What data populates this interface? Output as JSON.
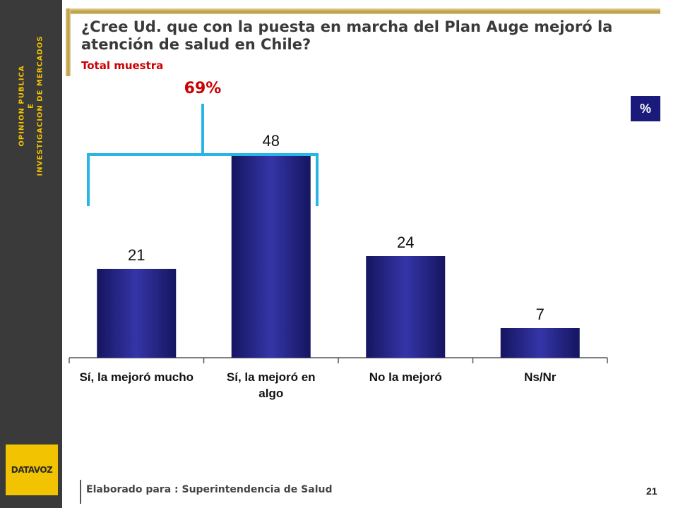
{
  "sidebar": {
    "lines": [
      "OPINION PUBLICA",
      "E",
      "INVESTIGACION DE MERCADOS"
    ],
    "logo_text": "DATAVOZ"
  },
  "header": {
    "title": "¿Cree Ud. que con la puesta en marcha del Plan Auge mejoró la atención de salud en Chile?",
    "subtitle": "Total muestra"
  },
  "unit_badge": "%",
  "footer": {
    "text": "Elaborado para : Superintendencia de Salud",
    "page_number": "21"
  },
  "colors": {
    "sidebar": "#3a3a3a",
    "accent_yellow": "#f2c300",
    "bar": "#2a2a90",
    "bracket": "#29b6e6",
    "subtitle": "#cc0000"
  },
  "chart_data": {
    "type": "bar",
    "categories": [
      [
        "Sí, la mejoró mucho"
      ],
      [
        "Sí, la mejoró en",
        "algo"
      ],
      [
        "No la mejoró"
      ],
      [
        "Ns/Nr"
      ]
    ],
    "values": [
      21,
      48,
      24,
      7
    ],
    "data_labels": [
      "21",
      "48",
      "24",
      "7"
    ],
    "ylim": [
      0,
      60
    ],
    "grid": false,
    "legend": "none",
    "annotation": {
      "label": "69%",
      "spans_categories": [
        0,
        1
      ]
    }
  }
}
